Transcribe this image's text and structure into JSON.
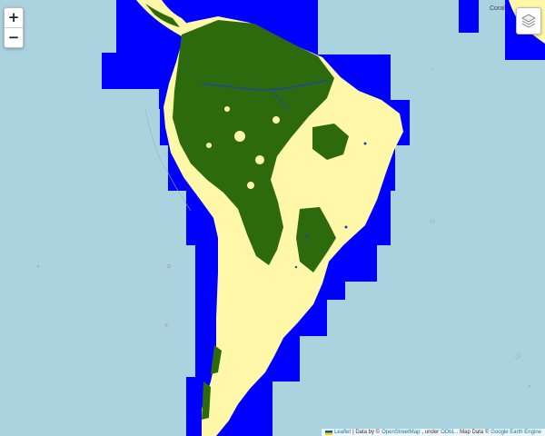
{
  "map": {
    "place_label": "Coral",
    "colors": {
      "ocean": "#aad3df",
      "no_data_mask": "#0000ff",
      "forest": "#2d6a0e",
      "non_forest": "#fff8a8",
      "water": "#1a3fbf"
    }
  },
  "controls": {
    "zoom_in": "+",
    "zoom_out": "−",
    "layers_icon": "layers-icon"
  },
  "attribution": {
    "leaflet": "Leaflet",
    "data_by": "| Data by ©",
    "osm": "OpenStreetMap",
    "under": ", under",
    "odbl": "ODbL",
    "map_data": ". Map Data ©",
    "gee": "Google Earth Engine"
  }
}
